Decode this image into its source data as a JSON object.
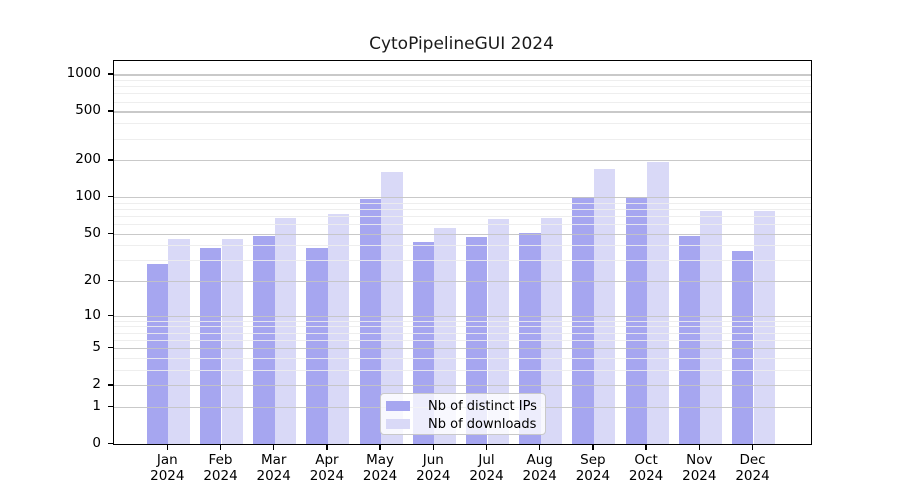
{
  "chart_data": {
    "type": "bar",
    "title": "CytoPipelineGUI 2024",
    "categories": [
      "Jan",
      "Feb",
      "Mar",
      "Apr",
      "May",
      "Jun",
      "Jul",
      "Aug",
      "Sep",
      "Oct",
      "Nov",
      "Dec"
    ],
    "year": "2024",
    "series": [
      {
        "name": "Nb of distinct IPs",
        "color": "#a6a6f0",
        "values": [
          28,
          38,
          48,
          38,
          97,
          43,
          47,
          51,
          100,
          100,
          48,
          36
        ]
      },
      {
        "name": "Nb of downloads",
        "color": "#d9d9f7",
        "values": [
          45,
          45,
          67,
          72,
          160,
          56,
          66,
          68,
          170,
          195,
          77,
          77
        ]
      }
    ],
    "yscale": "log10(1+x)",
    "ylim": [
      0,
      1280
    ],
    "y_major_ticks": [
      0,
      1,
      2,
      5,
      10,
      20,
      50,
      100,
      200,
      500,
      1000
    ],
    "y_tick_labels": [
      "0",
      "1",
      "2",
      "5",
      "10",
      "20",
      "50",
      "100",
      "200",
      "500",
      "1000"
    ],
    "y_minor_ticks": [
      3,
      4,
      6,
      7,
      8,
      9,
      30,
      40,
      60,
      70,
      80,
      90,
      300,
      400,
      600,
      700,
      800,
      900
    ],
    "grid": true,
    "legend_position": "lower center",
    "xlabel": "",
    "ylabel": ""
  },
  "colors": {
    "background": "#ffffff",
    "axis": "#000000",
    "grid_major": "#c3c3c3",
    "grid_minor": "#ececec",
    "series_ips": "#a6a6f0",
    "series_downloads": "#d9d9f7"
  }
}
